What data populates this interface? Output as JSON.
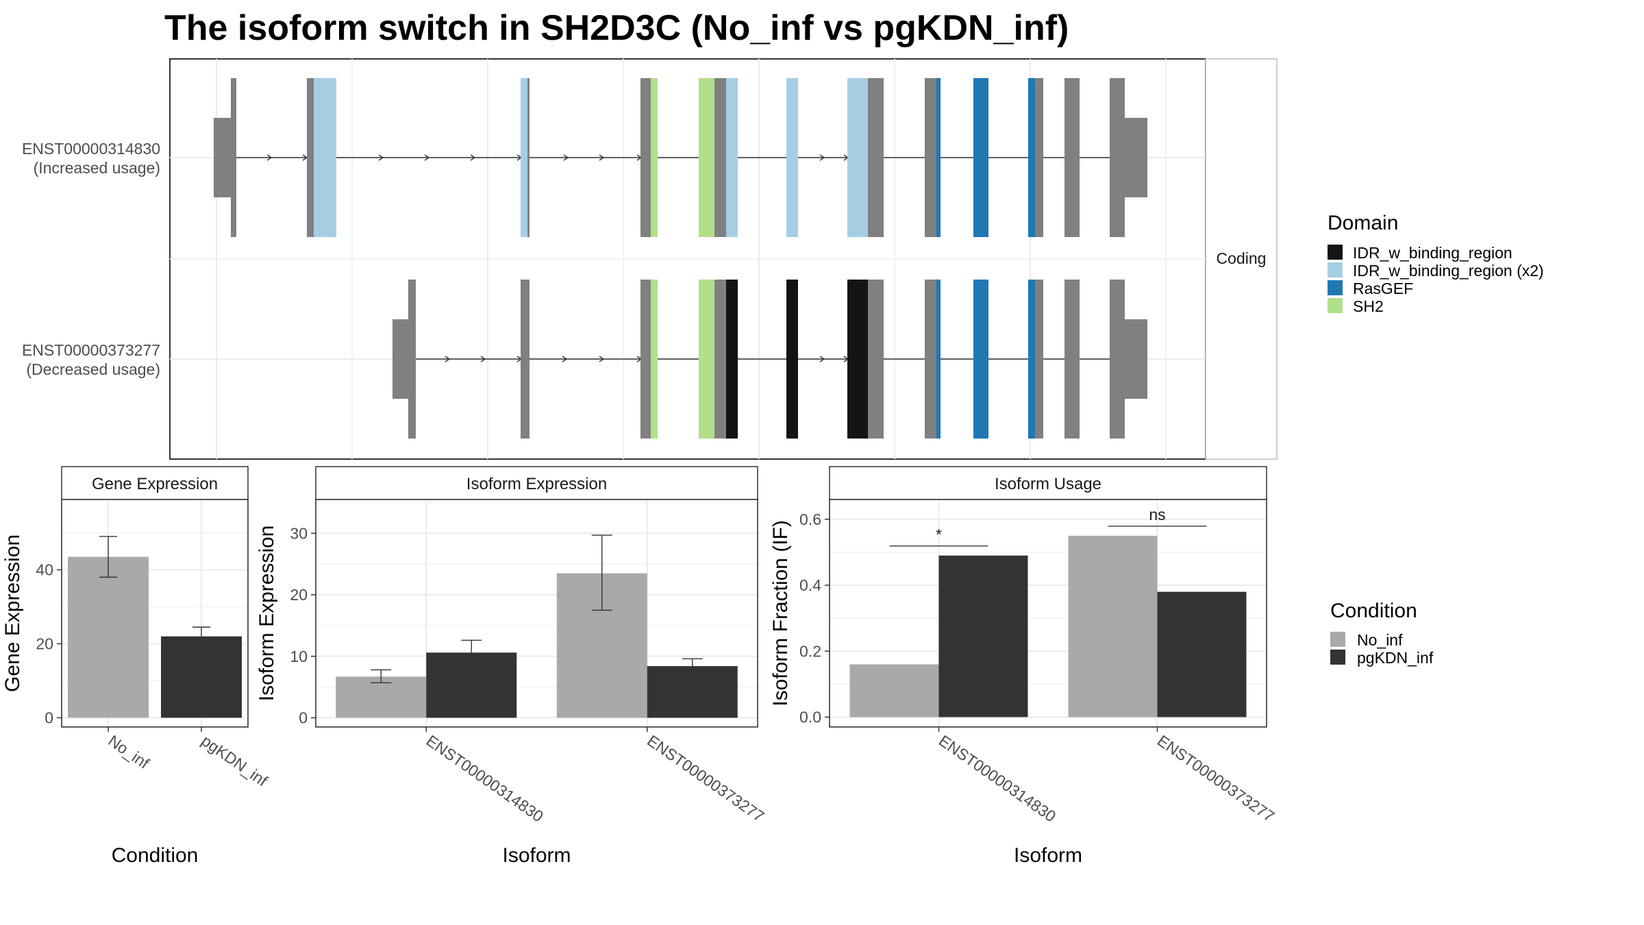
{
  "title": "The isoform switch in SH2D3C (No_inf vs pgKDN_inf)",
  "structure_panel": {
    "facet_label": "Coding",
    "isoforms": [
      {
        "id": "ENST00000314830",
        "note": "(Increased usage)"
      },
      {
        "id": "ENST00000373277",
        "note": "(Decreased usage)"
      }
    ]
  },
  "domain_legend": {
    "title": "Domain",
    "items": [
      {
        "label": "IDR_w_binding_region",
        "color": "#141414"
      },
      {
        "label": "IDR_w_binding_region (x2)",
        "color": "#a6cee3"
      },
      {
        "label": "RasGEF",
        "color": "#1f78b4"
      },
      {
        "label": "SH2",
        "color": "#b2df8a"
      }
    ]
  },
  "condition_legend": {
    "title": "Condition",
    "items": [
      {
        "label": "No_inf",
        "color": "#a9a9a9"
      },
      {
        "label": "pgKDN_inf",
        "color": "#333333"
      }
    ]
  },
  "chart_data": [
    {
      "type": "bar",
      "panel": "Gene Expression",
      "xlabel": "Condition",
      "ylabel": "Gene Expression",
      "categories": [
        "No_inf",
        "pgKDN_inf"
      ],
      "values": [
        43.5,
        22
      ],
      "errors": [
        [
          38,
          49
        ],
        [
          19.5,
          24.5
        ]
      ],
      "colors": [
        "#a9a9a9",
        "#333333"
      ],
      "yticks": [
        0,
        20,
        40
      ],
      "ylim": [
        -2.5,
        59
      ]
    },
    {
      "type": "bar",
      "panel": "Isoform Expression",
      "xlabel": "Isoform",
      "ylabel": "Isoform Expression",
      "categories": [
        "ENST00000314830",
        "ENST00000373277"
      ],
      "series": [
        {
          "name": "No_inf",
          "values": [
            6.7,
            23.5
          ],
          "errors": [
            [
              5.7,
              7.8
            ],
            [
              17.5,
              29.7
            ]
          ]
        },
        {
          "name": "pgKDN_inf",
          "values": [
            10.6,
            8.4
          ],
          "errors": [
            [
              8.7,
              12.6
            ],
            [
              7.2,
              9.6
            ]
          ]
        }
      ],
      "yticks": [
        0,
        10,
        20,
        30
      ],
      "ylim": [
        -1.5,
        35.5
      ]
    },
    {
      "type": "bar",
      "panel": "Isoform Usage",
      "xlabel": "Isoform",
      "ylabel": "Isoform Fraction (IF)",
      "categories": [
        "ENST00000314830",
        "ENST00000373277"
      ],
      "series": [
        {
          "name": "No_inf",
          "values": [
            0.16,
            0.55
          ]
        },
        {
          "name": "pgKDN_inf",
          "values": [
            0.49,
            0.38
          ]
        }
      ],
      "significance": [
        "*",
        "ns"
      ],
      "yticks": [
        "0.0",
        "0.2",
        "0.4",
        "0.6"
      ],
      "ylim": [
        -0.03,
        0.66
      ]
    }
  ]
}
